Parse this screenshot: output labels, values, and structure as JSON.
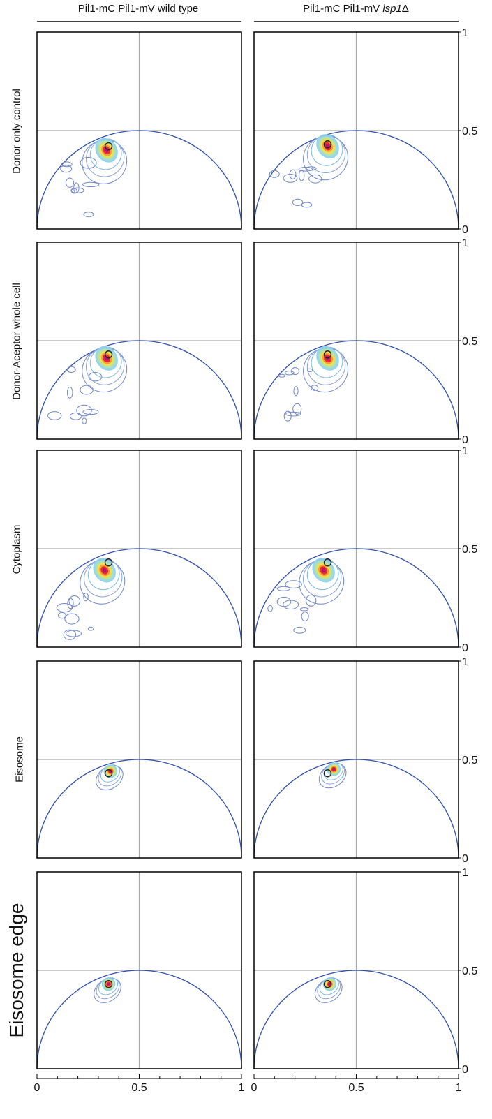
{
  "columns": [
    {
      "title_prefix": "Pil1-mC Pil1-mV  wild type",
      "title_italic": ""
    },
    {
      "title_prefix": "Pil1-mC Pil1-mV ",
      "title_italic": "lsp1",
      "title_suffix": "Δ"
    }
  ],
  "rows": [
    {
      "label": "Donor only control"
    },
    {
      "label": "Donor-Aceptor whole cell"
    },
    {
      "label": "Cytoplasm"
    },
    {
      "label": "Eisosome"
    },
    {
      "label": "Eisosome edge"
    }
  ],
  "axes": {
    "x_ticks": [
      "0",
      "0.5",
      "1"
    ],
    "y_ticks": [
      "0",
      "0.5",
      "1"
    ],
    "xlim": [
      0,
      1
    ],
    "ylim": [
      0,
      1
    ],
    "grid_lines": {
      "x": 0.5,
      "y": 0.5
    }
  },
  "colors": {
    "semicircle": "#2f4fa8",
    "contour": "#6f86c8",
    "grid": "#aaaaaa",
    "frame": "#000000",
    "heat_low": "#8fd3e8",
    "heat_mid": "#f5e046",
    "heat_high": "#e8232a",
    "heat_peak": "#b3127a"
  },
  "chart_data": {
    "type": "scatter",
    "description_series": "phasor plots with universal semicircle",
    "panels": [
      {
        "row": 0,
        "col": 0,
        "reference_point": [
          0.35,
          0.42
        ],
        "cloud_center": [
          0.34,
          0.4
        ]
      },
      {
        "row": 0,
        "col": 1,
        "reference_point": [
          0.36,
          0.43
        ],
        "cloud_center": [
          0.36,
          0.42
        ]
      },
      {
        "row": 1,
        "col": 0,
        "reference_point": [
          0.35,
          0.43
        ],
        "cloud_center": [
          0.34,
          0.41
        ]
      },
      {
        "row": 1,
        "col": 1,
        "reference_point": [
          0.36,
          0.43
        ],
        "cloud_center": [
          0.36,
          0.41
        ]
      },
      {
        "row": 2,
        "col": 0,
        "reference_point": [
          0.35,
          0.43
        ],
        "cloud_center": [
          0.33,
          0.39
        ]
      },
      {
        "row": 2,
        "col": 1,
        "reference_point": [
          0.36,
          0.43
        ],
        "cloud_center": [
          0.34,
          0.39
        ]
      },
      {
        "row": 3,
        "col": 0,
        "reference_point": [
          0.35,
          0.43
        ],
        "cloud_center": [
          0.36,
          0.44
        ]
      },
      {
        "row": 3,
        "col": 1,
        "reference_point": [
          0.36,
          0.43
        ],
        "cloud_center": [
          0.39,
          0.45
        ]
      },
      {
        "row": 4,
        "col": 0,
        "reference_point": [
          0.35,
          0.43
        ],
        "cloud_center": [
          0.35,
          0.43
        ]
      },
      {
        "row": 4,
        "col": 1,
        "reference_point": [
          0.36,
          0.43
        ],
        "cloud_center": [
          0.37,
          0.43
        ]
      }
    ]
  }
}
